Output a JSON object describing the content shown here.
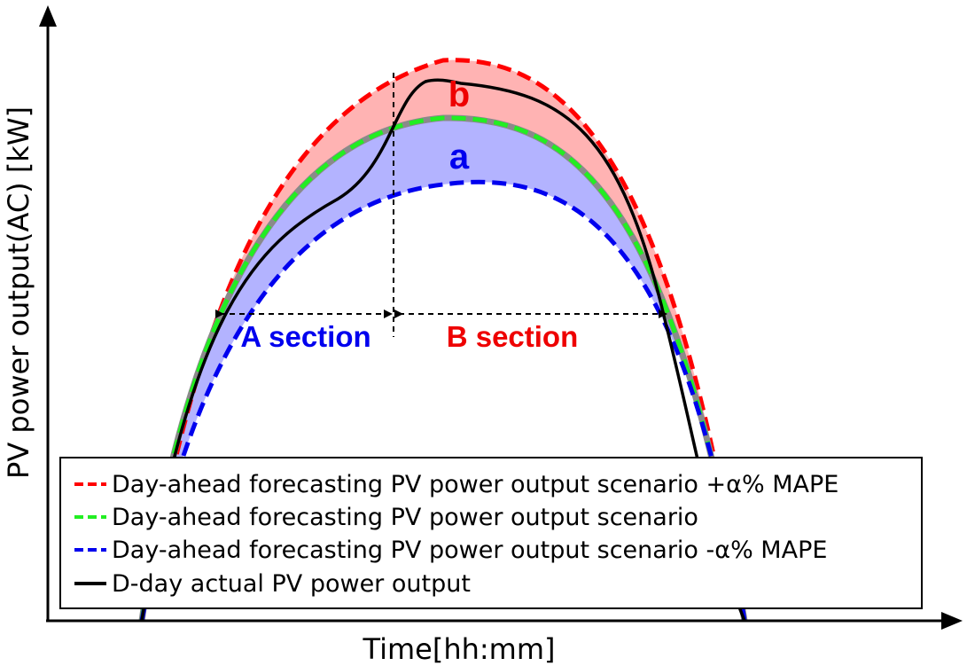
{
  "axes": {
    "ylabel": "PV power output(AC) [kW]",
    "xlabel": "Time[hh:mm]"
  },
  "annotations": {
    "region_b": "b",
    "region_a": "a",
    "section_a": "A section",
    "section_b": "B section"
  },
  "colors": {
    "upper_curve": "#ff0000",
    "forecast_curve": "#22cc22",
    "lower_curve": "#0000ee",
    "actual_curve": "#000000",
    "fill_upper": "#ffb3b3",
    "fill_lower": "#b3b3ff",
    "section_a_text": "#0000ee",
    "section_b_text": "#ee0000"
  },
  "legend": {
    "items": [
      {
        "label": "Day-ahead forecasting PV power output scenario +α% MAPE",
        "color": "#ff0000",
        "style": "dashed"
      },
      {
        "label": "Day-ahead forecasting PV power output scenario",
        "color": "#22ee22",
        "style": "dashed"
      },
      {
        "label": "Day-ahead forecasting PV power output scenario -α% MAPE",
        "color": "#0000ee",
        "style": "dashed"
      },
      {
        "label": "D-day actual PV power output",
        "color": "#000000",
        "style": "solid"
      }
    ]
  }
}
